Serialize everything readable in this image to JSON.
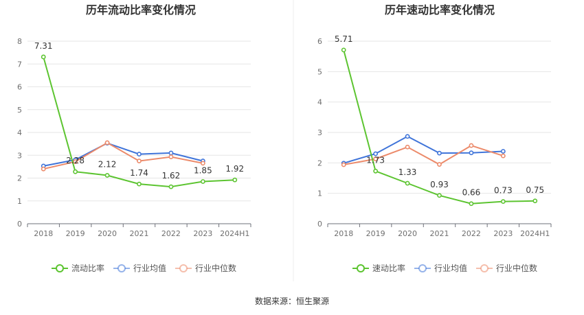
{
  "chart_data": [
    {
      "type": "line",
      "title": "历年流动比率变化情况",
      "categories": [
        "2018",
        "2019",
        "2020",
        "2021",
        "2022",
        "2023",
        "2024H1"
      ],
      "ylim": [
        0,
        8
      ],
      "yticks": [
        0,
        1,
        2,
        3,
        4,
        5,
        6,
        7,
        8
      ],
      "grid": true,
      "legend_position": "bottom",
      "series": [
        {
          "name": "流动比率",
          "color": "#5cc430",
          "values": [
            7.31,
            2.28,
            2.12,
            1.74,
            1.62,
            1.85,
            1.92
          ],
          "labels": [
            "7.31",
            "2.28",
            "2.12",
            "1.74",
            "1.62",
            "1.85",
            "1.92"
          ]
        },
        {
          "name": "行业均值",
          "color": "#3f74d9",
          "values": [
            2.53,
            2.8,
            3.53,
            3.05,
            3.1,
            2.75,
            null
          ]
        },
        {
          "name": "行业中位数",
          "color": "#ec8a6a",
          "values": [
            2.4,
            2.72,
            3.55,
            2.75,
            2.93,
            2.65,
            null
          ]
        }
      ]
    },
    {
      "type": "line",
      "title": "历年速动比率变化情况",
      "categories": [
        "2018",
        "2019",
        "2020",
        "2021",
        "2022",
        "2023",
        "2024H1"
      ],
      "ylim": [
        0,
        6
      ],
      "yticks": [
        0,
        1,
        2,
        3,
        4,
        5,
        6
      ],
      "grid": true,
      "legend_position": "bottom",
      "series": [
        {
          "name": "速动比率",
          "color": "#5cc430",
          "values": [
            5.71,
            1.73,
            1.33,
            0.93,
            0.66,
            0.73,
            0.75
          ],
          "labels": [
            "5.71",
            "1.73",
            "1.33",
            "0.93",
            "0.66",
            "0.73",
            "0.75"
          ]
        },
        {
          "name": "行业均值",
          "color": "#3f74d9",
          "values": [
            1.99,
            2.3,
            2.87,
            2.32,
            2.33,
            2.38,
            null
          ]
        },
        {
          "name": "行业中位数",
          "color": "#ec8a6a",
          "values": [
            1.94,
            2.13,
            2.52,
            1.95,
            2.57,
            2.23,
            null
          ]
        }
      ]
    }
  ],
  "source_text": "数据来源：恒生聚源"
}
